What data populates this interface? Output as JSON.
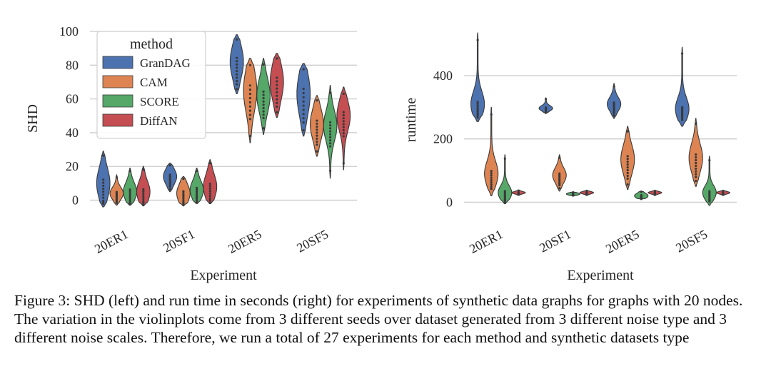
{
  "figure": {
    "caption": "Figure 3: SHD (left) and run time in seconds (right) for experiments of synthetic data graphs for graphs with 20 nodes. The variation in the violinplots come from 3 different seeds over dataset generated from 3 different noise type and 3 different noise scales. Therefore, we run a total of 27 experiments for each method and synthetic datasets type"
  },
  "colors": {
    "GranDAG": "#4c72b0",
    "CAM": "#dd8452",
    "SCORE": "#55a868",
    "DiffAN": "#c44e52",
    "grid": "#cccccc",
    "axis_text": "#262626"
  },
  "chart_data": [
    {
      "type": "violin",
      "xlabel": "Experiment",
      "ylabel": "SHD",
      "ylim": [
        -4,
        100
      ],
      "yticks": [
        0,
        20,
        40,
        60,
        80,
        100
      ],
      "grid": "horizontal",
      "categories": [
        "20ER1",
        "20SF1",
        "20ER5",
        "20SF5"
      ],
      "legend": {
        "title": "method",
        "placement": "top-left",
        "entries": [
          "GranDAG",
          "CAM",
          "SCORE",
          "DiffAN"
        ]
      },
      "series": [
        {
          "name": "GranDAG",
          "violins": [
            {
              "min": -4,
              "max": 29,
              "median": 10,
              "q1": 5,
              "q3": 15
            },
            {
              "min": 5,
              "max": 22,
              "median": 14,
              "q1": 11,
              "q3": 16
            },
            {
              "min": 63,
              "max": 98,
              "median": 82,
              "q1": 77,
              "q3": 88
            },
            {
              "min": 38,
              "max": 81,
              "median": 63,
              "q1": 56,
              "q3": 70
            }
          ]
        },
        {
          "name": "CAM",
          "violins": [
            {
              "min": -3,
              "max": 15,
              "median": 4,
              "q1": 2,
              "q3": 6
            },
            {
              "min": -3,
              "max": 14,
              "median": 4,
              "q1": 1,
              "q3": 7
            },
            {
              "min": 34,
              "max": 84,
              "median": 65,
              "q1": 58,
              "q3": 72
            },
            {
              "min": 26,
              "max": 62,
              "median": 45,
              "q1": 40,
              "q3": 50
            }
          ]
        },
        {
          "name": "SCORE",
          "violins": [
            {
              "min": -3,
              "max": 19,
              "median": 5,
              "q1": 2,
              "q3": 8
            },
            {
              "min": -2,
              "max": 19,
              "median": 6,
              "q1": 3,
              "q3": 9
            },
            {
              "min": 39,
              "max": 84,
              "median": 62,
              "q1": 57,
              "q3": 68
            },
            {
              "min": 13,
              "max": 68,
              "median": 44,
              "q1": 38,
              "q3": 48
            }
          ]
        },
        {
          "name": "DiffAN",
          "violins": [
            {
              "min": -3,
              "max": 20,
              "median": 5,
              "q1": 2,
              "q3": 9
            },
            {
              "min": -2,
              "max": 24,
              "median": 8,
              "q1": 4,
              "q3": 12
            },
            {
              "min": 49,
              "max": 87,
              "median": 70,
              "q1": 64,
              "q3": 76
            },
            {
              "min": 18,
              "max": 67,
              "median": 50,
              "q1": 45,
              "q3": 55
            }
          ]
        }
      ]
    },
    {
      "type": "violin",
      "xlabel": "Experiment",
      "ylabel": "runtime",
      "ylim": [
        -15,
        540
      ],
      "yticks": [
        0,
        200,
        400
      ],
      "grid": "horizontal",
      "categories": [
        "20ER1",
        "20SF1",
        "20ER5",
        "20SF5"
      ],
      "series": [
        {
          "name": "GranDAG",
          "violins": [
            {
              "min": 255,
              "max": 535,
              "median": 310,
              "q1": 295,
              "q3": 330
            },
            {
              "min": 280,
              "max": 330,
              "median": 297,
              "q1": 292,
              "q3": 301
            },
            {
              "min": 265,
              "max": 375,
              "median": 310,
              "q1": 298,
              "q3": 322
            },
            {
              "min": 240,
              "max": 490,
              "median": 295,
              "q1": 285,
              "q3": 310
            }
          ]
        },
        {
          "name": "CAM",
          "violins": [
            {
              "min": 20,
              "max": 300,
              "median": 90,
              "q1": 70,
              "q3": 110
            },
            {
              "min": 35,
              "max": 150,
              "median": 85,
              "q1": 72,
              "q3": 98
            },
            {
              "min": 40,
              "max": 240,
              "median": 135,
              "q1": 110,
              "q3": 160
            },
            {
              "min": 50,
              "max": 265,
              "median": 140,
              "q1": 115,
              "q3": 165
            }
          ]
        },
        {
          "name": "SCORE",
          "violins": [
            {
              "min": -5,
              "max": 150,
              "median": 30,
              "q1": 18,
              "q3": 42
            },
            {
              "min": 20,
              "max": 32,
              "median": 26,
              "q1": 24,
              "q3": 28
            },
            {
              "min": 10,
              "max": 35,
              "median": 20,
              "q1": 16,
              "q3": 25
            },
            {
              "min": -10,
              "max": 145,
              "median": 30,
              "q1": 18,
              "q3": 40
            }
          ]
        },
        {
          "name": "DiffAN",
          "violins": [
            {
              "min": 22,
              "max": 38,
              "median": 30,
              "q1": 28,
              "q3": 32
            },
            {
              "min": 22,
              "max": 37,
              "median": 30,
              "q1": 28,
              "q3": 32
            },
            {
              "min": 22,
              "max": 37,
              "median": 30,
              "q1": 28,
              "q3": 32
            },
            {
              "min": 22,
              "max": 37,
              "median": 30,
              "q1": 28,
              "q3": 32
            }
          ]
        }
      ]
    }
  ]
}
